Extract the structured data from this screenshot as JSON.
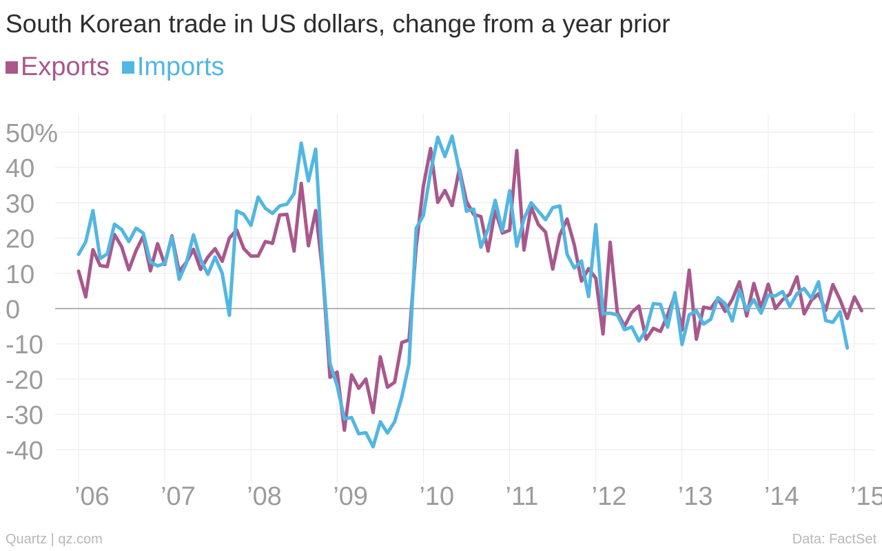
{
  "header": {
    "title": "South Korean trade in US dollars, change from a year prior"
  },
  "legend": [
    {
      "label": "Exports",
      "color": "#a8588c"
    },
    {
      "label": "Imports",
      "color": "#52b6e2"
    }
  ],
  "footer": {
    "source_left": "Quartz | qz.com",
    "source_right": "Data: FactSet"
  },
  "chart_data": {
    "type": "line",
    "title": "South Korean trade in US dollars, change from a year prior",
    "xlabel": "",
    "ylabel": "",
    "ylim": [
      -47,
      55
    ],
    "xlim": [
      "2006-01",
      "2015-02"
    ],
    "y_ticks": [
      50,
      40,
      30,
      20,
      10,
      0,
      -10,
      -20,
      -30,
      -40
    ],
    "y_tick_labels": [
      "50%",
      "40",
      "30",
      "20",
      "10",
      "0",
      "-10",
      "-20",
      "-30",
      "-40"
    ],
    "x_ticks": [
      "2006-01",
      "2007-01",
      "2008-01",
      "2009-01",
      "2010-01",
      "2011-01",
      "2012-01",
      "2013-01",
      "2014-01",
      "2015-01"
    ],
    "x_tick_labels": [
      "’06",
      "’07",
      "’08",
      "’09",
      "’10",
      "’11",
      "’12",
      "’13",
      "’14",
      "’15"
    ],
    "grid": true,
    "legend_position": "top-left",
    "months": [
      "2006-01",
      "2006-02",
      "2006-03",
      "2006-04",
      "2006-05",
      "2006-06",
      "2006-07",
      "2006-08",
      "2006-09",
      "2006-10",
      "2006-11",
      "2006-12",
      "2007-01",
      "2007-02",
      "2007-03",
      "2007-04",
      "2007-05",
      "2007-06",
      "2007-07",
      "2007-08",
      "2007-09",
      "2007-10",
      "2007-11",
      "2007-12",
      "2008-01",
      "2008-02",
      "2008-03",
      "2008-04",
      "2008-05",
      "2008-06",
      "2008-07",
      "2008-08",
      "2008-09",
      "2008-10",
      "2008-11",
      "2008-12",
      "2009-01",
      "2009-02",
      "2009-03",
      "2009-04",
      "2009-05",
      "2009-06",
      "2009-07",
      "2009-08",
      "2009-09",
      "2009-10",
      "2009-11",
      "2009-12",
      "2010-01",
      "2010-02",
      "2010-03",
      "2010-04",
      "2010-05",
      "2010-06",
      "2010-07",
      "2010-08",
      "2010-09",
      "2010-10",
      "2010-11",
      "2010-12",
      "2011-01",
      "2011-02",
      "2011-03",
      "2011-04",
      "2011-05",
      "2011-06",
      "2011-07",
      "2011-08",
      "2011-09",
      "2011-10",
      "2011-11",
      "2011-12",
      "2012-01",
      "2012-02",
      "2012-03",
      "2012-04",
      "2012-05",
      "2012-06",
      "2012-07",
      "2012-08",
      "2012-09",
      "2012-10",
      "2012-11",
      "2012-12",
      "2013-01",
      "2013-02",
      "2013-03",
      "2013-04",
      "2013-05",
      "2013-06",
      "2013-07",
      "2013-08",
      "2013-09",
      "2013-10",
      "2013-11",
      "2013-12",
      "2014-01",
      "2014-02",
      "2014-03",
      "2014-04",
      "2014-05",
      "2014-06",
      "2014-07",
      "2014-08",
      "2014-09",
      "2014-10",
      "2014-11",
      "2014-12",
      "2015-01",
      "2015-02"
    ],
    "series": [
      {
        "name": "Exports",
        "color": "#a8588c",
        "values": [
          10.6,
          3.3,
          16.7,
          12.2,
          11.9,
          21.0,
          17.5,
          11.0,
          16.4,
          20.5,
          10.7,
          18.4,
          12.5,
          20.6,
          10.5,
          13.1,
          16.8,
          11.1,
          14.6,
          17.0,
          13.4,
          20.0,
          22.3,
          17.0,
          14.9,
          14.9,
          19.0,
          18.5,
          26.5,
          26.7,
          16.3,
          35.5,
          17.8,
          27.8,
          10.0,
          -19.5,
          -18.0,
          -34.5,
          -18.8,
          -22.6,
          -20.0,
          -29.5,
          -13.7,
          -22.3,
          -20.9,
          -9.6,
          -8.9,
          17.6,
          34.7,
          45.4,
          30.1,
          33.5,
          29.2,
          39.6,
          30.4,
          26.7,
          26.1,
          16.3,
          27.8,
          21.4,
          22.2,
          44.8,
          16.6,
          28.8,
          23.8,
          21.7,
          11.2,
          20.9,
          25.4,
          18.1,
          7.8,
          11.3,
          8.6,
          -7.2,
          18.8,
          -1.2,
          -5.0,
          -1.1,
          0.7,
          -8.7,
          -5.6,
          -6.5,
          -1.8,
          3.8,
          -6.1,
          10.9,
          -8.7,
          0.4,
          0.0,
          2.9,
          -0.8,
          2.6,
          7.6,
          -2.1,
          7.1,
          0.2,
          6.9,
          0.0,
          2.5,
          4.1,
          9.0,
          -1.5,
          2.3,
          4.2,
          -0.5,
          6.8,
          2.5,
          -2.8,
          3.3,
          -0.6
        ]
      },
      {
        "name": "Imports",
        "color": "#52b6e2",
        "values": [
          15.4,
          18.9,
          27.8,
          14.2,
          15.5,
          23.9,
          22.4,
          19.0,
          22.8,
          21.4,
          13.2,
          12.1,
          12.8,
          20.3,
          8.3,
          12.9,
          20.9,
          13.9,
          9.7,
          14.6,
          10.0,
          -1.9,
          27.7,
          26.7,
          23.6,
          31.6,
          28.4,
          27.0,
          29.1,
          29.6,
          32.6,
          46.9,
          36.2,
          45.2,
          10.8,
          -15.5,
          -21.9,
          -31.3,
          -30.9,
          -35.5,
          -35.2,
          -39.2,
          -32.1,
          -35.3,
          -32.1,
          -25.0,
          -15.6,
          22.8,
          26.4,
          38.8,
          48.6,
          43.1,
          48.9,
          39.0,
          27.6,
          28.2,
          17.4,
          22.5,
          30.7,
          22.0,
          33.4,
          17.7,
          25.4,
          30.0,
          27.6,
          25.2,
          28.6,
          29.1,
          15.4,
          11.5,
          13.5,
          3.4,
          23.8,
          -1.4,
          -1.3,
          -1.8,
          -6.0,
          -5.2,
          -9.2,
          -6.1,
          1.4,
          1.2,
          -5.3,
          4.5,
          -10.2,
          -1.8,
          -0.6,
          -4.4,
          -3.0,
          3.1,
          1.4,
          -3.5,
          5.1,
          -0.5,
          2.5,
          -1.3,
          3.8,
          3.6,
          4.8,
          0.6,
          4.2,
          5.7,
          2.9,
          7.6,
          -3.4,
          -3.9,
          -0.9,
          -11.2
        ]
      }
    ]
  }
}
